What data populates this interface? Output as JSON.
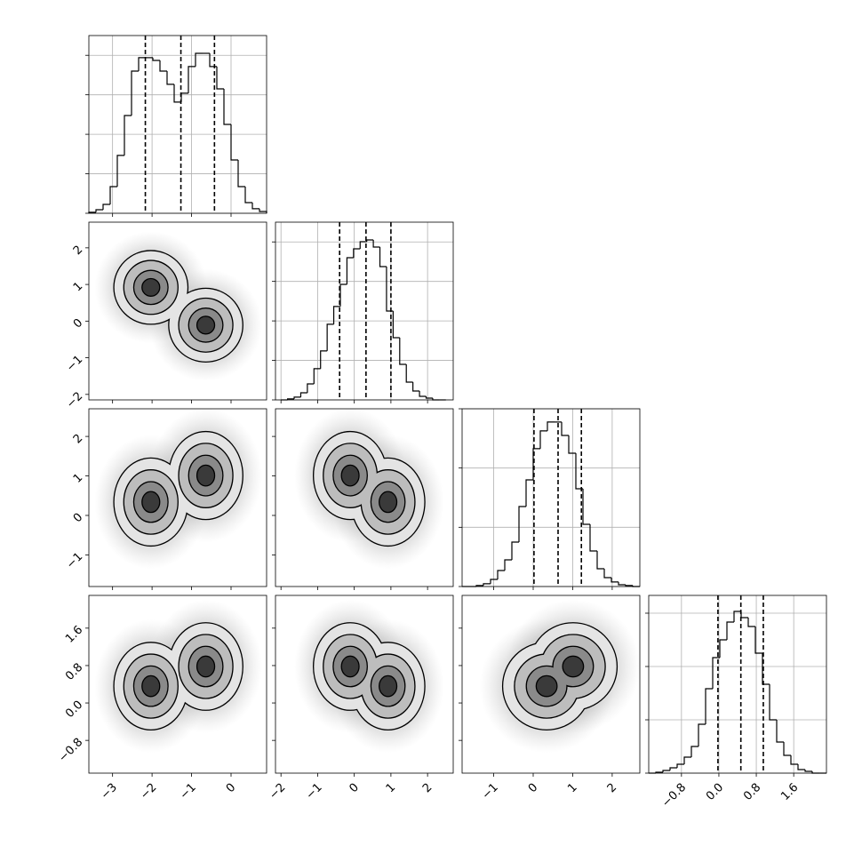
{
  "chart_data": {
    "type": "corner",
    "grid": true,
    "color": "#000000",
    "variables": [
      {
        "lim": [
          -3.6,
          0.9
        ],
        "ticks": [
          {
            "value": -3,
            "label": "−3"
          },
          {
            "value": -2,
            "label": "−2"
          },
          {
            "value": -1,
            "label": "−1"
          },
          0
        ]
      },
      {
        "lim": [
          -2.15,
          2.7
        ],
        "ticks": [
          {
            "value": -2,
            "label": "−2"
          },
          {
            "value": -1,
            "label": "−1"
          },
          0,
          1,
          2
        ]
      },
      {
        "lim": [
          -1.8,
          2.7
        ],
        "ticks": [
          {
            "value": -1,
            "label": "−1"
          },
          0,
          1,
          2
        ]
      },
      {
        "lim": [
          -1.5,
          2.3
        ],
        "ticks": [
          {
            "value": -0.8,
            "label": "−0.8"
          },
          {
            "value": 0,
            "label": "0.0"
          },
          0.8,
          1.6
        ]
      }
    ],
    "histograms": [
      {
        "bins": [
          -3.6,
          -3.42,
          -3.24,
          -3.06,
          -2.88,
          -2.7,
          -2.52,
          -2.34,
          -2.16,
          -1.98,
          -1.8,
          -1.62,
          -1.44,
          -1.26,
          -1.08,
          -0.9,
          -0.72,
          -0.54,
          -0.36,
          -0.18,
          0,
          0.18,
          0.36,
          0.54,
          0.72,
          0.9
        ],
        "counts": [
          5,
          18,
          45,
          135,
          293,
          495,
          720,
          788,
          788,
          774,
          720,
          653,
          563,
          608,
          743,
          810,
          810,
          743,
          630,
          450,
          270,
          135,
          54,
          23,
          9
        ],
        "quantiles": [
          -2.17,
          -1.27,
          -0.42
        ],
        "ylim": [
          0,
          900
        ],
        "yticks": [
          0,
          200,
          400,
          600,
          800
        ]
      },
      {
        "bins": [
          -2.0,
          -1.82,
          -1.64,
          -1.46,
          -1.28,
          -1.1,
          -0.92,
          -0.74,
          -0.56,
          -0.38,
          -0.2,
          -0.02,
          0.16,
          0.34,
          0.52,
          0.7,
          0.88,
          1.06,
          1.24,
          1.42,
          1.6,
          1.78,
          1.96,
          2.14,
          2.32,
          2.5
        ],
        "counts": [
          0,
          5,
          14,
          36,
          81,
          158,
          248,
          383,
          473,
          585,
          720,
          765,
          801,
          810,
          774,
          675,
          450,
          315,
          180,
          90,
          45,
          18,
          9,
          0,
          0
        ],
        "quantiles": [
          -0.4,
          0.32,
          1.0
        ],
        "ylim": [
          0,
          900
        ],
        "yticks": [
          0,
          200,
          400,
          600,
          800
        ]
      },
      {
        "bins": [
          -1.8,
          -1.62,
          -1.44,
          -1.26,
          -1.08,
          -0.9,
          -0.72,
          -0.54,
          -0.36,
          -0.18,
          0,
          0.18,
          0.36,
          0.54,
          0.72,
          0.9,
          1.08,
          1.26,
          1.44,
          1.62,
          1.8,
          1.98,
          2.16,
          2.34,
          2.52,
          2.7
        ],
        "counts": [
          0,
          0,
          5,
          14,
          36,
          81,
          135,
          225,
          405,
          540,
          698,
          788,
          833,
          833,
          765,
          675,
          495,
          315,
          180,
          90,
          45,
          23,
          9,
          5,
          0
        ],
        "quantiles": [
          0.02,
          0.63,
          1.22
        ],
        "ylim": [
          0,
          900
        ],
        "yticks": [
          0,
          300,
          600,
          900
        ]
      },
      {
        "bins": [
          -1.5,
          -1.348,
          -1.196,
          -1.044,
          -0.892,
          -0.74,
          -0.588,
          -0.436,
          -0.284,
          -0.132,
          0.02,
          0.172,
          0.324,
          0.476,
          0.628,
          0.78,
          0.932,
          1.084,
          1.236,
          1.388,
          1.54,
          1.692,
          1.844,
          1.996,
          2.148,
          2.3
        ],
        "counts": [
          0,
          5,
          15,
          30,
          50,
          90,
          150,
          275,
          475,
          650,
          750,
          850,
          910,
          875,
          825,
          675,
          500,
          300,
          175,
          100,
          50,
          20,
          10,
          0,
          0
        ],
        "quantiles": [
          -0.02,
          0.47,
          0.95
        ],
        "ylim": [
          0,
          1000
        ],
        "yticks": [
          0,
          300,
          600,
          900
        ]
      }
    ],
    "mixture": [
      {
        "mean": [
          -2.03,
          0.92,
          0.34,
          0.36
        ],
        "sigma": [
          0.42,
          0.45,
          0.5,
          0.42
        ]
      },
      {
        "mean": [
          -0.64,
          -0.11,
          1.01,
          0.78
        ],
        "sigma": [
          0.42,
          0.45,
          0.5,
          0.42
        ]
      }
    ],
    "contour_levels": [
      2.2,
      1.6,
      1.0,
      0.5
    ],
    "level_colors": [
      "#e4e4e4",
      "#bdbdbd",
      "#8a8a8a",
      "#3a3a3a"
    ]
  }
}
